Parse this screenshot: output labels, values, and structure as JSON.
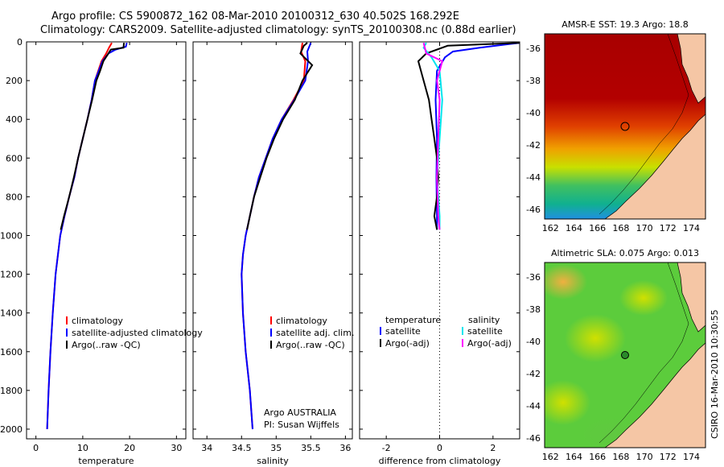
{
  "header": {
    "line1": "Argo profile: CS 5900872_162 08-Mar-2010 20100312_630 40.502S 168.292E",
    "line2": "Climatology: CARS2009. Satellite-adjusted climatology: synTS_20100308.nc (0.88d earlier)"
  },
  "credit": "CSIRO 16-Mar-2010 10:30:55",
  "colors": {
    "climatology": "#ff0000",
    "satellite": "#0000ff",
    "argo": "#000000",
    "sal_satellite": "#00e5ee",
    "sal_argo": "#ff00ff",
    "land": "#f5c6a5"
  },
  "chart_data": [
    {
      "type": "line",
      "panel": "temperature",
      "xlabel": "temperature",
      "ylabel": "",
      "xlim": [
        -2,
        32
      ],
      "ylim": [
        2050,
        0
      ],
      "xticks": [
        0,
        10,
        20,
        30
      ],
      "yticks": [
        0,
        200,
        400,
        600,
        800,
        1000,
        1200,
        1400,
        1600,
        1800,
        2000
      ],
      "legend": [
        "climatology",
        "satellite-adjusted climatology",
        "Argo(..raw -QC)"
      ],
      "series": [
        {
          "name": "climatology",
          "color": "#ff0000",
          "points": [
            [
              16.2,
              5
            ],
            [
              15.6,
              30
            ],
            [
              15.0,
              60
            ],
            [
              14.0,
              100
            ],
            [
              13.3,
              150
            ],
            [
              12.6,
              200
            ],
            [
              11.9,
              300
            ],
            [
              11.0,
              400
            ],
            [
              10.0,
              500
            ],
            [
              9.0,
              600
            ],
            [
              8.2,
              700
            ],
            [
              7.1,
              800
            ],
            [
              6.1,
              900
            ],
            [
              5.2,
              1000
            ],
            [
              4.2,
              1200
            ],
            [
              3.6,
              1400
            ],
            [
              3.1,
              1600
            ],
            [
              2.7,
              1800
            ],
            [
              2.4,
              2000
            ]
          ]
        },
        {
          "name": "satellite-adjusted climatology",
          "color": "#0000ff",
          "points": [
            [
              19.4,
              5
            ],
            [
              19.2,
              25
            ],
            [
              17.0,
              40
            ],
            [
              15.5,
              60
            ],
            [
              14.2,
              100
            ],
            [
              13.4,
              150
            ],
            [
              12.6,
              200
            ],
            [
              11.9,
              300
            ],
            [
              11.0,
              400
            ],
            [
              10.0,
              500
            ],
            [
              9.0,
              600
            ],
            [
              8.2,
              700
            ],
            [
              7.1,
              800
            ],
            [
              6.1,
              900
            ],
            [
              5.2,
              1000
            ],
            [
              4.2,
              1200
            ],
            [
              3.6,
              1400
            ],
            [
              3.1,
              1600
            ],
            [
              2.7,
              1800
            ],
            [
              2.4,
              2000
            ]
          ]
        },
        {
          "name": "Argo(..raw -QC)",
          "color": "#000000",
          "points": [
            [
              18.8,
              5
            ],
            [
              18.7,
              30
            ],
            [
              16.0,
              40
            ],
            [
              15.2,
              70
            ],
            [
              14.4,
              100
            ],
            [
              13.7,
              150
            ],
            [
              12.9,
              200
            ],
            [
              12.0,
              300
            ],
            [
              11.0,
              400
            ],
            [
              10.0,
              500
            ],
            [
              9.0,
              600
            ],
            [
              8.1,
              700
            ],
            [
              7.1,
              800
            ],
            [
              6.0,
              900
            ],
            [
              5.3,
              970
            ]
          ]
        }
      ]
    },
    {
      "type": "line",
      "panel": "salinity",
      "xlabel": "salinity",
      "xlim": [
        33.8,
        36.1
      ],
      "ylim": [
        2050,
        0
      ],
      "xticks": [
        34,
        34.5,
        35,
        35.5,
        36
      ],
      "legend": [
        "climatology",
        "satellite adj. clim.",
        "Argo(..raw -QC)"
      ],
      "annotation": [
        "Argo AUSTRALIA",
        "PI: Susan Wijffels"
      ],
      "series": [
        {
          "name": "climatology",
          "color": "#ff0000",
          "points": [
            [
              35.38,
              5
            ],
            [
              35.36,
              50
            ],
            [
              35.42,
              100
            ],
            [
              35.4,
              200
            ],
            [
              35.25,
              300
            ],
            [
              35.08,
              400
            ],
            [
              34.95,
              500
            ],
            [
              34.85,
              600
            ],
            [
              34.75,
              700
            ],
            [
              34.68,
              800
            ],
            [
              34.62,
              900
            ],
            [
              34.56,
              1000
            ],
            [
              34.52,
              1100
            ],
            [
              34.5,
              1200
            ],
            [
              34.52,
              1400
            ],
            [
              34.56,
              1600
            ],
            [
              34.62,
              1800
            ],
            [
              34.66,
              2000
            ]
          ]
        },
        {
          "name": "satellite adj. clim.",
          "color": "#0000ff",
          "points": [
            [
              35.5,
              5
            ],
            [
              35.45,
              50
            ],
            [
              35.46,
              100
            ],
            [
              35.42,
              200
            ],
            [
              35.26,
              300
            ],
            [
              35.08,
              400
            ],
            [
              34.95,
              500
            ],
            [
              34.85,
              600
            ],
            [
              34.75,
              700
            ],
            [
              34.68,
              800
            ],
            [
              34.62,
              900
            ],
            [
              34.56,
              1000
            ],
            [
              34.52,
              1100
            ],
            [
              34.5,
              1200
            ],
            [
              34.52,
              1400
            ],
            [
              34.56,
              1600
            ],
            [
              34.62,
              1800
            ],
            [
              34.66,
              2000
            ]
          ]
        },
        {
          "name": "Argo(..raw -QC)",
          "color": "#000000",
          "points": [
            [
              35.45,
              5
            ],
            [
              35.4,
              20
            ],
            [
              35.35,
              60
            ],
            [
              35.52,
              120
            ],
            [
              35.38,
              200
            ],
            [
              35.27,
              300
            ],
            [
              35.1,
              400
            ],
            [
              34.97,
              500
            ],
            [
              34.86,
              600
            ],
            [
              34.77,
              700
            ],
            [
              34.68,
              800
            ],
            [
              34.62,
              900
            ],
            [
              34.58,
              970
            ]
          ]
        }
      ]
    },
    {
      "type": "line",
      "panel": "difference",
      "xlabel": "difference from climatology",
      "xlim": [
        -3,
        3
      ],
      "ylim": [
        2050,
        0
      ],
      "xticks": [
        -2,
        0,
        2
      ],
      "legend": {
        "temperature": [
          "satellite",
          "Argo(-adj)"
        ],
        "salinity": [
          "satellite",
          "Argo(-adj)"
        ]
      },
      "series": [
        {
          "name": "temperature satellite",
          "color": "#0000ff",
          "points": [
            [
              3.0,
              5
            ],
            [
              1.5,
              30
            ],
            [
              0.5,
              50
            ],
            [
              0.2,
              80
            ],
            [
              -0.1,
              150
            ],
            [
              -0.15,
              300
            ],
            [
              -0.1,
              500
            ],
            [
              -0.12,
              700
            ],
            [
              -0.1,
              900
            ],
            [
              -0.1,
              970
            ]
          ]
        },
        {
          "name": "temperature Argo(-adj)",
          "color": "#000000",
          "points": [
            [
              3.0,
              5
            ],
            [
              0.3,
              20
            ],
            [
              -0.5,
              60
            ],
            [
              -0.8,
              100
            ],
            [
              -0.6,
              200
            ],
            [
              -0.4,
              300
            ],
            [
              -0.3,
              400
            ],
            [
              -0.2,
              500
            ],
            [
              -0.1,
              600
            ],
            [
              -0.05,
              700
            ],
            [
              -0.1,
              800
            ],
            [
              -0.2,
              900
            ],
            [
              -0.1,
              970
            ]
          ]
        },
        {
          "name": "salinity satellite",
          "color": "#00e5ee",
          "points": [
            [
              -0.5,
              5
            ],
            [
              -0.6,
              30
            ],
            [
              -0.3,
              80
            ],
            [
              0.0,
              150
            ],
            [
              0.1,
              300
            ],
            [
              0.0,
              500
            ],
            [
              -0.1,
              700
            ],
            [
              0.0,
              900
            ],
            [
              0.0,
              970
            ]
          ]
        },
        {
          "name": "salinity Argo(-adj)",
          "color": "#ff00ff",
          "points": [
            [
              -0.6,
              5
            ],
            [
              -0.5,
              60
            ],
            [
              0.1,
              100
            ],
            [
              -0.1,
              200
            ],
            [
              0.0,
              300
            ],
            [
              -0.05,
              500
            ],
            [
              -0.1,
              700
            ],
            [
              -0.05,
              900
            ],
            [
              0.0,
              970
            ]
          ]
        }
      ]
    },
    {
      "type": "heatmap",
      "panel": "sst-map",
      "title": "AMSR-E SST: 19.3 Argo: 18.8",
      "xlim": [
        161.5,
        175.2
      ],
      "ylim": [
        -46.6,
        -35.1
      ],
      "xticks": [
        162,
        164,
        166,
        168,
        170,
        172,
        174
      ],
      "yticks": [
        -36,
        -38,
        -40,
        -42,
        -44,
        -46
      ],
      "marker": {
        "lon": 168.292,
        "lat": -40.502
      }
    },
    {
      "type": "heatmap",
      "panel": "sla-map",
      "title": "Altimetric SLA: 0.075 Argo: 0.013",
      "xlim": [
        161.5,
        175.2
      ],
      "ylim": [
        -46.6,
        -35.1
      ],
      "xticks": [
        162,
        164,
        166,
        168,
        170,
        172,
        174
      ],
      "yticks": [
        -36,
        -38,
        -40,
        -42,
        -44,
        -46
      ],
      "marker": {
        "lon": 168.292,
        "lat": -40.502
      }
    }
  ]
}
